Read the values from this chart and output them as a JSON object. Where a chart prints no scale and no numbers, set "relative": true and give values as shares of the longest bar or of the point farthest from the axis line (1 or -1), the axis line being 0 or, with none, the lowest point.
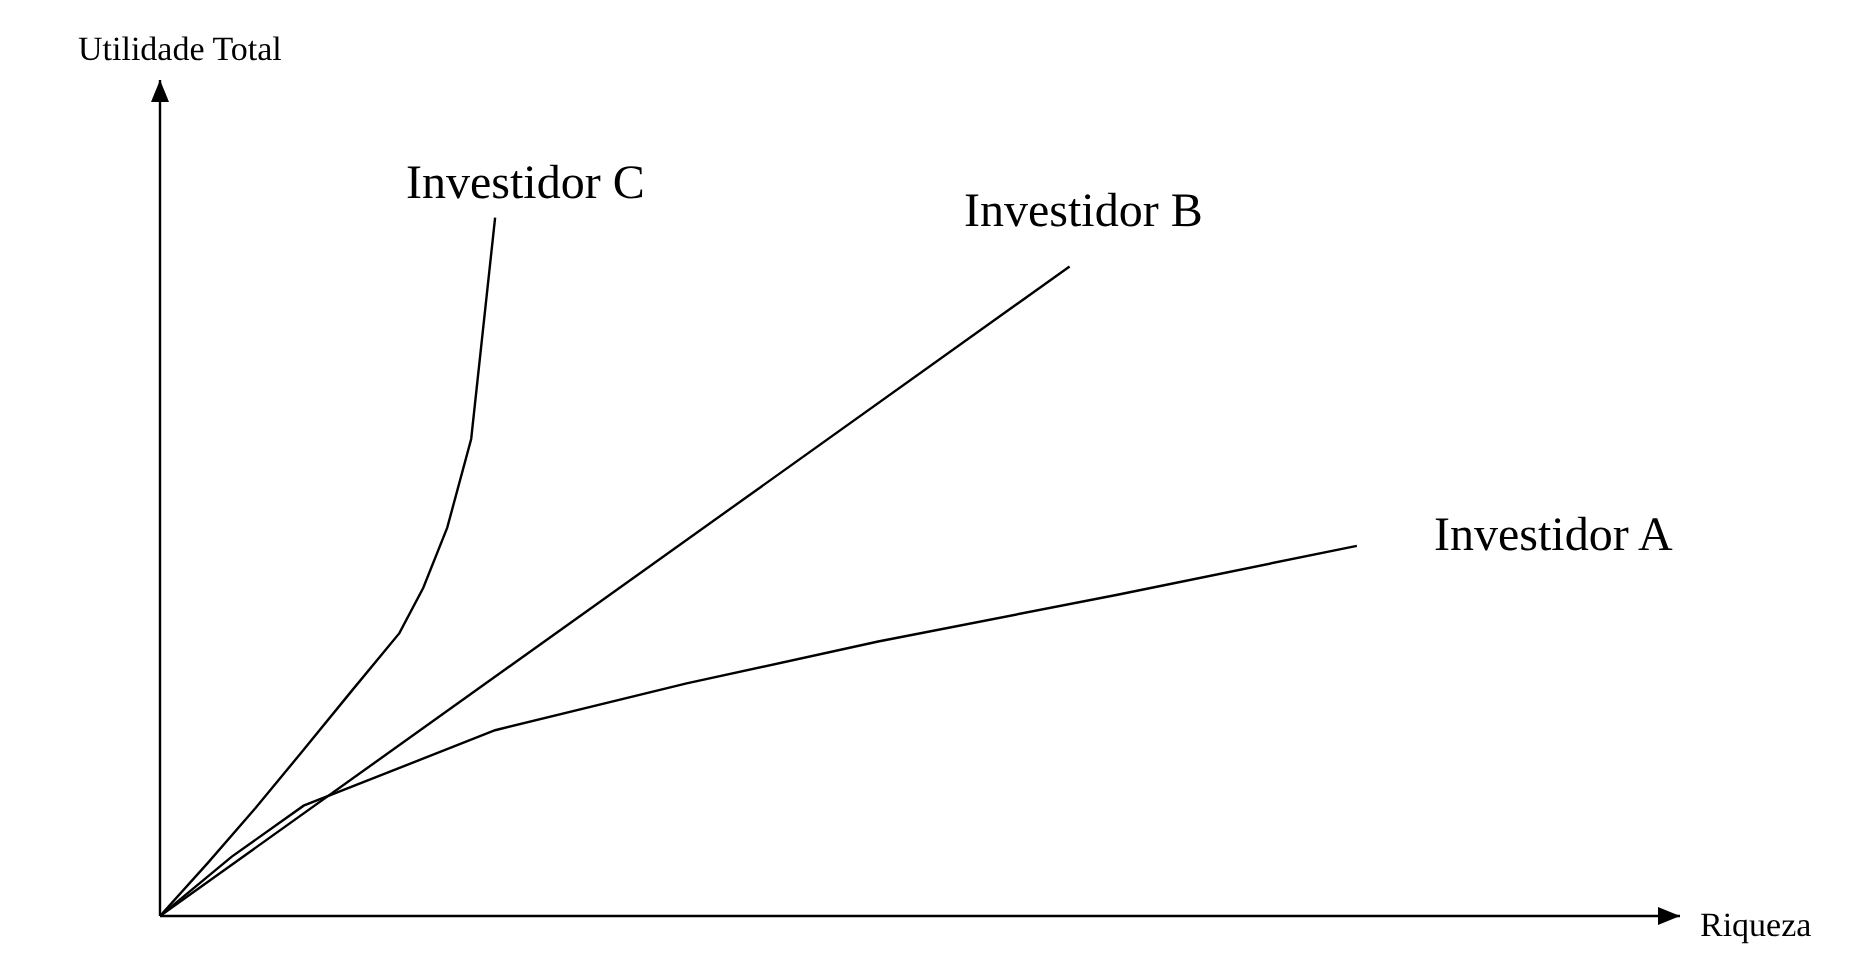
{
  "chart_data": {
    "type": "line",
    "relative": true,
    "annotations": [
      "Riqueza"
    ],
    "ylabel": "Utilidade Total",
    "color": "#000000",
    "legend": false,
    "marker": "none",
    "line_style": "solid",
    "categories": [
      null,
      null,
      null,
      null,
      null,
      null,
      null,
      null,
      null,
      null,
      null,
      null,
      null,
      null,
      null,
      null,
      null,
      null,
      null,
      null,
      null,
      null,
      null,
      null,
      null,
      null,
      null,
      null,
      null,
      null,
      null,
      null,
      null,
      null,
      null,
      null,
      null,
      null,
      null,
      null,
      null,
      null,
      null,
      null,
      null,
      null,
      null,
      null,
      null,
      null,
      null
    ],
    "series": [
      {
        "name": "Investidor C",
        "values": [
          0,
          null,
          0.076,
          null,
          0.155,
          null,
          0.238,
          null,
          0.322,
          null,
          0.405,
          0.47,
          0.556,
          0.683,
          1,
          null,
          null,
          null,
          null,
          null,
          null,
          null,
          null,
          null,
          null,
          null,
          null,
          null,
          null,
          null,
          null,
          null,
          null,
          null,
          null,
          null,
          null,
          null,
          null,
          null,
          null,
          null,
          null,
          null,
          null,
          null,
          null,
          null,
          null,
          null,
          null
        ]
      },
      {
        "name": "Investidor B",
        "values": [
          0,
          null,
          null,
          null,
          null,
          null,
          null,
          null,
          null,
          null,
          null,
          null,
          null,
          null,
          null,
          null,
          null,
          null,
          null,
          null,
          null,
          null,
          null,
          null,
          null,
          null,
          null,
          null,
          null,
          null,
          null,
          null,
          null,
          null,
          null,
          null,
          null,
          null,
          0.93,
          null,
          null,
          null,
          null,
          null,
          null,
          null,
          null,
          null,
          null,
          null,
          null
        ]
      },
      {
        "name": "Investidor A",
        "values": [
          0,
          null,
          null,
          0.085,
          null,
          null,
          0.158,
          null,
          null,
          null,
          null,
          null,
          null,
          null,
          0.266,
          null,
          null,
          null,
          null,
          null,
          null,
          null,
          0.333,
          null,
          null,
          null,
          null,
          null,
          null,
          null,
          0.393,
          null,
          null,
          null,
          null,
          null,
          null,
          null,
          null,
          null,
          0.46,
          null,
          null,
          null,
          null,
          null,
          null,
          null,
          null,
          null,
          0.53
        ]
      }
    ]
  }
}
